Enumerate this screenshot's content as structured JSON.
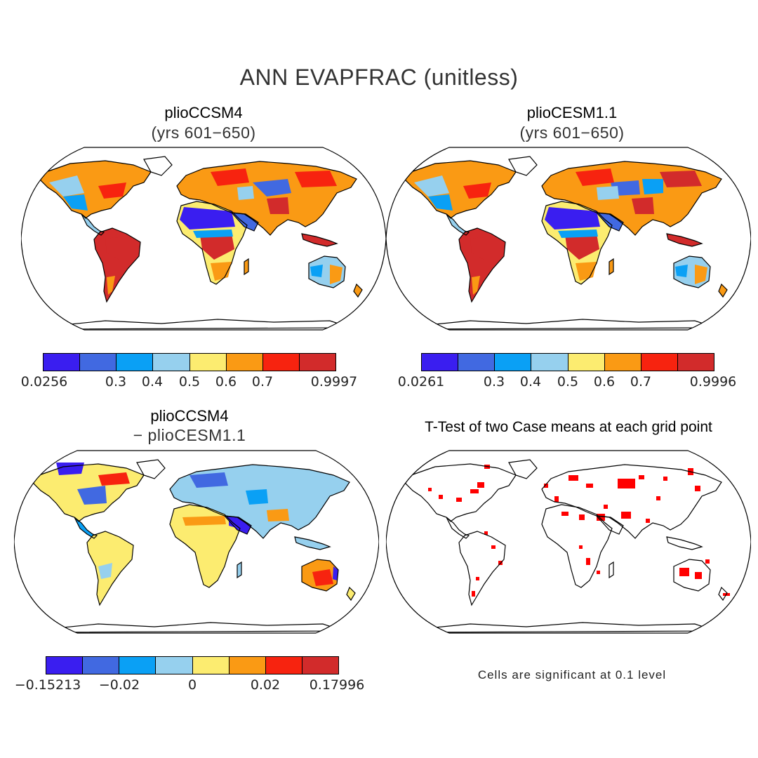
{
  "title": "ANN EVAPFRAC (unitless)",
  "palette": {
    "c1": "#3a1ef0",
    "c2": "#4169e1",
    "c3": "#0aa0f5",
    "c4": "#96d0ee",
    "c5": "#fcec70",
    "c6": "#fa9a14",
    "c7": "#f7230f",
    "c8": "#d22b2b",
    "ocean": "#ffffff",
    "coast": "#000000",
    "signif": "#ff0000"
  },
  "panels": [
    {
      "id": "plioCCSM4",
      "title": "plioCCSM4",
      "subtitle": "(yrs 601−650)",
      "colorbar": {
        "ticks": [
          "0.0256",
          "0.3",
          "0.4",
          "0.5",
          "0.6",
          "0.7",
          "0.9997"
        ]
      }
    },
    {
      "id": "plioCESM1.1",
      "title": "plioCESM1.1",
      "subtitle": "(yrs 601−650)",
      "colorbar": {
        "ticks": [
          "0.0261",
          "0.3",
          "0.4",
          "0.5",
          "0.6",
          "0.7",
          "0.9996"
        ]
      }
    },
    {
      "id": "difference",
      "title": "plioCCSM4",
      "subtitle": "− plioCESM1.1",
      "colorbar": {
        "ticks": [
          "−0.15213",
          "−0.02",
          "0",
          "0.02",
          "0.17996"
        ]
      }
    },
    {
      "id": "ttest",
      "title": "T-Test of two Case means at each grid point",
      "note": "Cells are significant at 0.1 level"
    }
  ]
}
